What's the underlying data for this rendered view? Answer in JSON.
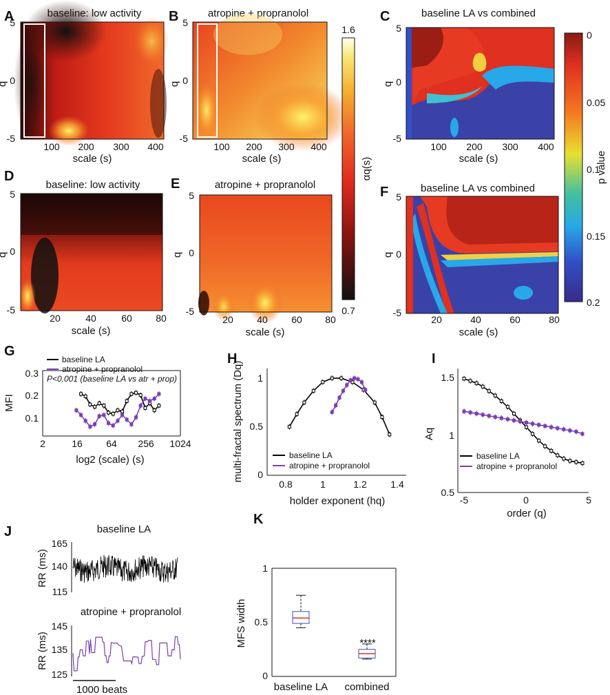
{
  "panels": {
    "A": {
      "label": "A",
      "title": "baseline: low activity",
      "xlabel": "scale (s)",
      "ylabel": "q",
      "xticks": [
        "100",
        "200",
        "300",
        "400"
      ],
      "yticks": [
        "5",
        "0",
        "-5"
      ]
    },
    "B": {
      "label": "B",
      "title": "atropine + propranolol",
      "xlabel": "scale (s)",
      "ylabel": "q",
      "xticks": [
        "100",
        "200",
        "300",
        "400"
      ],
      "yticks": [
        "5",
        "0",
        "-5"
      ]
    },
    "C": {
      "label": "C",
      "title": "baseline LA vs combined",
      "xlabel": "scale (s)",
      "ylabel": "q",
      "xticks": [
        "100",
        "200",
        "300",
        "400"
      ],
      "yticks": [
        "5",
        "0",
        "-5"
      ]
    },
    "D": {
      "label": "D",
      "title": "baseline: low activity",
      "xlabel": "scale (s)",
      "ylabel": "q",
      "xticks": [
        "20",
        "40",
        "60",
        "80"
      ],
      "yticks": [
        "5",
        "0",
        "-5"
      ]
    },
    "E": {
      "label": "E",
      "title": "atropine + propranolol",
      "xlabel": "scale (s)",
      "ylabel": "q",
      "xticks": [
        "20",
        "40",
        "60",
        "80"
      ],
      "yticks": [
        "5",
        "0",
        "-5"
      ]
    },
    "F": {
      "label": "F",
      "title": "baseline LA vs combined",
      "xlabel": "scale (s)",
      "ylabel": "q",
      "xticks": [
        "20",
        "40",
        "60",
        "80"
      ],
      "yticks": [
        "5",
        "0",
        "-5"
      ]
    }
  },
  "colorbar_alpha": {
    "label": "αq(s)",
    "max": "1.6",
    "min": "0.7"
  },
  "colorbar_p": {
    "label": "p value",
    "ticks": [
      "0",
      "0.05",
      "0.1",
      "0.15",
      "0.2"
    ]
  },
  "colors": {
    "baseline": "#000000",
    "combined": "#7a3fb5",
    "median": "#e8302a",
    "box": "#3b4bc8"
  },
  "chart_data": [
    {
      "panel": "G",
      "type": "line",
      "label": "G",
      "xlabel": "log2 (scale) (s)",
      "ylabel": "MFI",
      "xticks": [
        "2",
        "16",
        "64",
        "256",
        "1024"
      ],
      "yticks": [
        "0.1",
        "0.2",
        "0.3"
      ],
      "xlim": [
        1,
        10
      ],
      "ylim": [
        0.02,
        0.3
      ],
      "legend": [
        "baseline LA",
        "atropine + propranolol"
      ],
      "annotation": "P<0.001 (baseline LA vs atr + prop)",
      "series": [
        {
          "name": "baseline LA",
          "x": [
            3.5,
            3.8,
            4.1,
            4.4,
            4.7,
            5.0,
            5.3,
            5.6,
            5.9,
            6.2,
            6.5,
            6.8,
            7.1,
            7.4,
            7.7,
            8.0,
            8.3,
            8.6
          ],
          "y": [
            0.2,
            0.19,
            0.155,
            0.145,
            0.16,
            0.15,
            0.12,
            0.115,
            0.13,
            0.125,
            0.17,
            0.2,
            0.205,
            0.195,
            0.14,
            0.16,
            0.13,
            0.15
          ]
        },
        {
          "name": "atropine + propranolol",
          "x": [
            3.2,
            3.5,
            3.8,
            4.1,
            4.4,
            4.7,
            5.0,
            5.3,
            5.6,
            5.9,
            6.2,
            6.5,
            6.8,
            7.1,
            7.4,
            7.7,
            8.0,
            8.3,
            8.6
          ],
          "y": [
            0.13,
            0.11,
            0.085,
            0.06,
            0.07,
            0.105,
            0.11,
            0.075,
            0.065,
            0.085,
            0.11,
            0.09,
            0.07,
            0.1,
            0.15,
            0.18,
            0.17,
            0.18,
            0.2
          ]
        }
      ]
    },
    {
      "panel": "H",
      "type": "line",
      "label": "H",
      "xlabel": "holder exponent (hq)",
      "ylabel": "multi-fractal spectrum (Dq)",
      "xticks": [
        "0.8",
        "1",
        "1.2",
        "1.4"
      ],
      "yticks": [
        "0",
        "0.5",
        "1"
      ],
      "xlim": [
        0.7,
        1.45
      ],
      "ylim": [
        0,
        1.1
      ],
      "legend": [
        "baseline LA",
        "atropine + propranolol"
      ],
      "series": [
        {
          "name": "baseline LA",
          "x": [
            0.82,
            0.86,
            0.9,
            0.95,
            1.0,
            1.05,
            1.1,
            1.16,
            1.22,
            1.28,
            1.32,
            1.36
          ],
          "y": [
            0.5,
            0.63,
            0.75,
            0.87,
            0.96,
            1.0,
            1.0,
            0.96,
            0.88,
            0.75,
            0.6,
            0.42
          ]
        },
        {
          "name": "atropine + propranolol",
          "x": [
            1.05,
            1.07,
            1.09,
            1.11,
            1.13,
            1.15,
            1.17,
            1.19,
            1.21,
            1.23
          ],
          "y": [
            0.65,
            0.72,
            0.8,
            0.87,
            0.93,
            0.98,
            1.0,
            0.99,
            0.96,
            0.88
          ]
        }
      ]
    },
    {
      "panel": "I",
      "type": "line",
      "label": "I",
      "xlabel": "order (q)",
      "ylabel": "Aq",
      "xticks": [
        "-5",
        "0",
        "5"
      ],
      "yticks": [
        "0.5",
        "1",
        "1.5"
      ],
      "xlim": [
        -5.5,
        5
      ],
      "ylim": [
        0.5,
        1.6
      ],
      "legend": [
        "baseline LA",
        "atropine + propranolol"
      ],
      "series": [
        {
          "name": "baseline LA",
          "x": [
            -5,
            -4.5,
            -4,
            -3.5,
            -3,
            -2.5,
            -2,
            -1.5,
            -1,
            -0.5,
            0,
            0.5,
            1,
            1.5,
            2,
            2.5,
            3,
            3.5,
            4,
            4.5
          ],
          "y": [
            1.51,
            1.49,
            1.47,
            1.44,
            1.4,
            1.36,
            1.31,
            1.26,
            1.2,
            1.14,
            1.08,
            1.02,
            0.96,
            0.91,
            0.87,
            0.83,
            0.8,
            0.78,
            0.77,
            0.76
          ]
        },
        {
          "name": "atropine + propranolol",
          "x": [
            -5,
            -4.5,
            -4,
            -3.5,
            -3,
            -2.5,
            -2,
            -1.5,
            -1,
            -0.5,
            0,
            0.5,
            1,
            1.5,
            2,
            2.5,
            3,
            3.5,
            4,
            4.5
          ],
          "y": [
            1.22,
            1.21,
            1.2,
            1.19,
            1.18,
            1.17,
            1.16,
            1.15,
            1.14,
            1.13,
            1.12,
            1.11,
            1.1,
            1.09,
            1.08,
            1.07,
            1.06,
            1.05,
            1.04,
            1.02
          ]
        }
      ]
    },
    {
      "panel": "K",
      "type": "box",
      "label": "K",
      "ylabel": "MFS width",
      "yticks": [
        "0",
        "0.5",
        "1"
      ],
      "ylim": [
        0,
        1
      ],
      "categories": [
        "baseline LA",
        "combined"
      ],
      "boxes": [
        {
          "min": 0.45,
          "q1": 0.49,
          "median": 0.54,
          "q3": 0.6,
          "max": 0.75
        },
        {
          "min": 0.16,
          "q1": 0.17,
          "median": 0.21,
          "q3": 0.25,
          "max": 0.3
        }
      ],
      "significance": "****"
    }
  ],
  "traces": {
    "label": "J",
    "top": {
      "title": "baseline LA",
      "ylabel": "RR (ms)",
      "yticks": [
        "165",
        "140",
        "115"
      ]
    },
    "bottom": {
      "title": "atropine + propranolol",
      "ylabel": "RR (ms)",
      "yticks": [
        "145",
        "135",
        "125"
      ]
    },
    "scalebar": "1000 beats"
  }
}
